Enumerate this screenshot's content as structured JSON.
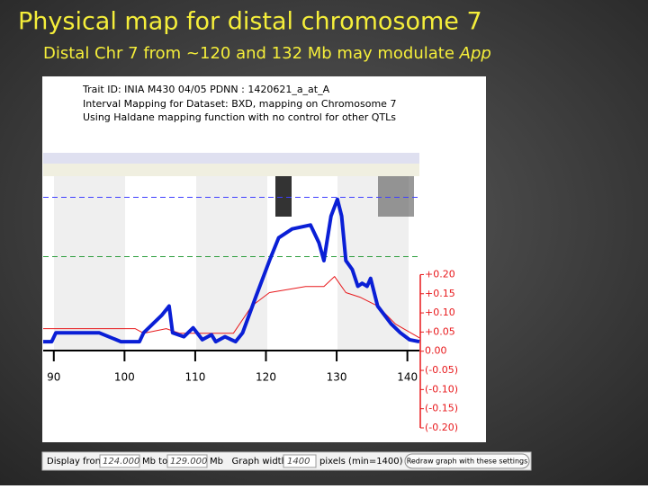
{
  "slide": {
    "title": "Physical map for distal chromosome 7",
    "subtitle": "Distal Chr 7 from ~120 and 132 Mb may modulate ",
    "subtitle_italic": "App"
  },
  "chart_data": {
    "type": "line",
    "header": [
      "Trait ID: INIA M430 04/05 PDNN : 1420621_a_at_A",
      "Interval Mapping for Dataset: BXD, mapping on Chromosome 7",
      "Using Haldane mapping function with no control for other QTLs"
    ],
    "xlim": [
      88.5,
      141.7
    ],
    "xticks": [
      90,
      100,
      110,
      120,
      130,
      140
    ],
    "ylim": [
      0,
      20
    ],
    "y2lim": [
      -0.2,
      0.52
    ],
    "y2ticks": [
      {
        "value": 0.2,
        "label": "+0.20"
      },
      {
        "value": 0.15,
        "label": "+0.15"
      },
      {
        "value": 0.1,
        "label": "+0.10"
      },
      {
        "value": 0.05,
        "label": "+0.05"
      },
      {
        "value": 0,
        "label": "0.00"
      },
      {
        "value": -0.05,
        "label": "(-0.05)"
      },
      {
        "value": -0.1,
        "label": "(-0.10)"
      },
      {
        "value": -0.15,
        "label": "(-0.15)"
      },
      {
        "value": -0.2,
        "label": "(-0.20)"
      }
    ],
    "thresholds": [
      {
        "value": 15.5,
        "color": "#3f3fff"
      },
      {
        "value": 9.5,
        "color": "#2e9e3e"
      }
    ],
    "series": [
      {
        "color": "#0a1fd6",
        "width": 4,
        "x": [
          88.5,
          89.7,
          90.3,
          95.1,
          96.4,
          99.5,
          102.1,
          102.7,
          105.3,
          106.3,
          106.8,
          108.4,
          109.7,
          111.0,
          112.3,
          112.9,
          114.2,
          115.7,
          116.7,
          118.6,
          120.5,
          121.8,
          123.7,
          126.3,
          127.5,
          128.2,
          129.2,
          130.1,
          130.7,
          131.3,
          132.2,
          133.0,
          133.6,
          134.3,
          134.8,
          135.8,
          137.7,
          139.0,
          140.3,
          141.7
        ],
        "values": [
          0.9,
          0.9,
          1.8,
          1.8,
          1.8,
          0.9,
          0.9,
          1.8,
          3.6,
          4.5,
          1.8,
          1.4,
          2.3,
          1.1,
          1.6,
          0.9,
          1.4,
          0.9,
          1.8,
          5.5,
          9.1,
          11.4,
          12.3,
          12.7,
          10.9,
          9.1,
          13.6,
          15.3,
          13.6,
          9.1,
          8.2,
          6.5,
          6.8,
          6.5,
          7.3,
          4.5,
          2.7,
          1.8,
          1.1,
          0.9
        ]
      },
      {
        "color": "#e8191c",
        "width": 1,
        "axis": "y2",
        "x": [
          88.5,
          101.5,
          102.7,
          105.9,
          107.8,
          115.4,
          118.0,
          120.5,
          125.6,
          128.2,
          129.7,
          131.3,
          133.3,
          135.8,
          138.3,
          141.7
        ],
        "values": [
          0.059,
          0.059,
          0.047,
          0.059,
          0.047,
          0.047,
          0.118,
          0.153,
          0.169,
          0.169,
          0.195,
          0.153,
          0.141,
          0.118,
          0.071,
          0.035
        ]
      }
    ]
  },
  "controls": {
    "label_from": "Display from",
    "from": "124.000",
    "label_to": "Mb to",
    "to": "129.000",
    "label_width": "Mb   Graph width:",
    "width": "1400",
    "label_pixels": "pixels (min=1400)",
    "button": "Redraw graph with these settings"
  }
}
